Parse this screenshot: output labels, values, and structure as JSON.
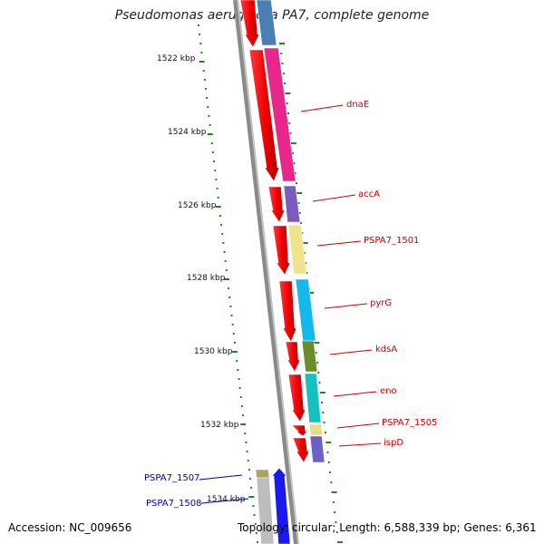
{
  "title": "Pseudomonas aeruginosa PA7, complete genome",
  "accession": "Accession: NC_009656",
  "topology": "Topology: circular; Length: 6,588,339 bp; Genes: 6,361",
  "tick_labels": [
    "1522 kbp",
    "1524 kbp",
    "1526 kbp",
    "1528 kbp",
    "1530 kbp",
    "1532 kbp",
    "1534 kbp"
  ],
  "gene_labels_forward": [
    "dnaE",
    "accA",
    "PSPA7_1501",
    "pyrG",
    "kdsA",
    "eno",
    "PSPA7_1505",
    "ispD"
  ],
  "gene_labels_reverse": [
    "PSPA7_1507",
    "PSPA7_1508"
  ],
  "colors": {
    "forward_label": "#cc0000",
    "reverse_label": "#0000aa",
    "axis": "#888888",
    "ticks": "#1a8a1a"
  }
}
